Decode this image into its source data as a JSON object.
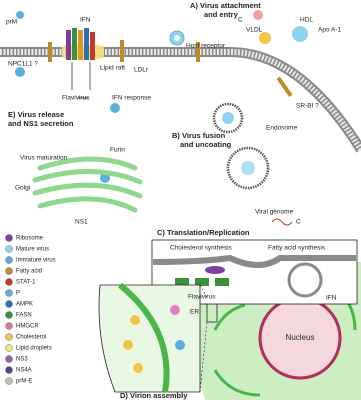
{
  "panels": {
    "a": "A) Virus attachment",
    "a2": "and entry",
    "b": "B) Virus fusion",
    "b2": "and uncoating",
    "c": "C) Translation/Replication",
    "d": "D) Virion assembly",
    "e": "E) Virus release",
    "e2": "and NS1 secretion"
  },
  "labels": {
    "prm": "prM",
    "ifn": "IFN",
    "npc": "NPC1L1 ?",
    "raft": "Lipid raft",
    "ldlr": "LDLr",
    "host": "Host receptor",
    "c1": "C",
    "vldl": "VLDL",
    "hdl": "HDL",
    "apo": "Apo A-1",
    "srbi": "SR-BI ?",
    "flavi": "Flavivirus",
    "ifnresp": "IFN response",
    "endo": "Endosome",
    "genome": "Viral genome",
    "c2": "C",
    "furin": "Furin",
    "matur": "Virus maturation",
    "golgi": "Golgi",
    "ns1": "NS1",
    "chol": "Cholesterol synthesis",
    "fas": "Fatty acid synthesis",
    "flavi2": "Flavivirus",
    "ifn2": "IFN",
    "er": "ER",
    "nucleus": "Nucleus"
  },
  "legend": [
    "Ribosome",
    "Mature virus",
    "Immature virus",
    "Fatty acid",
    "STAT-1",
    "P",
    "AMPK",
    "FASN",
    "HMGCR",
    "Cholesterol",
    "Lipid droplets",
    "NS3",
    "NS4A",
    "prM-E"
  ]
}
